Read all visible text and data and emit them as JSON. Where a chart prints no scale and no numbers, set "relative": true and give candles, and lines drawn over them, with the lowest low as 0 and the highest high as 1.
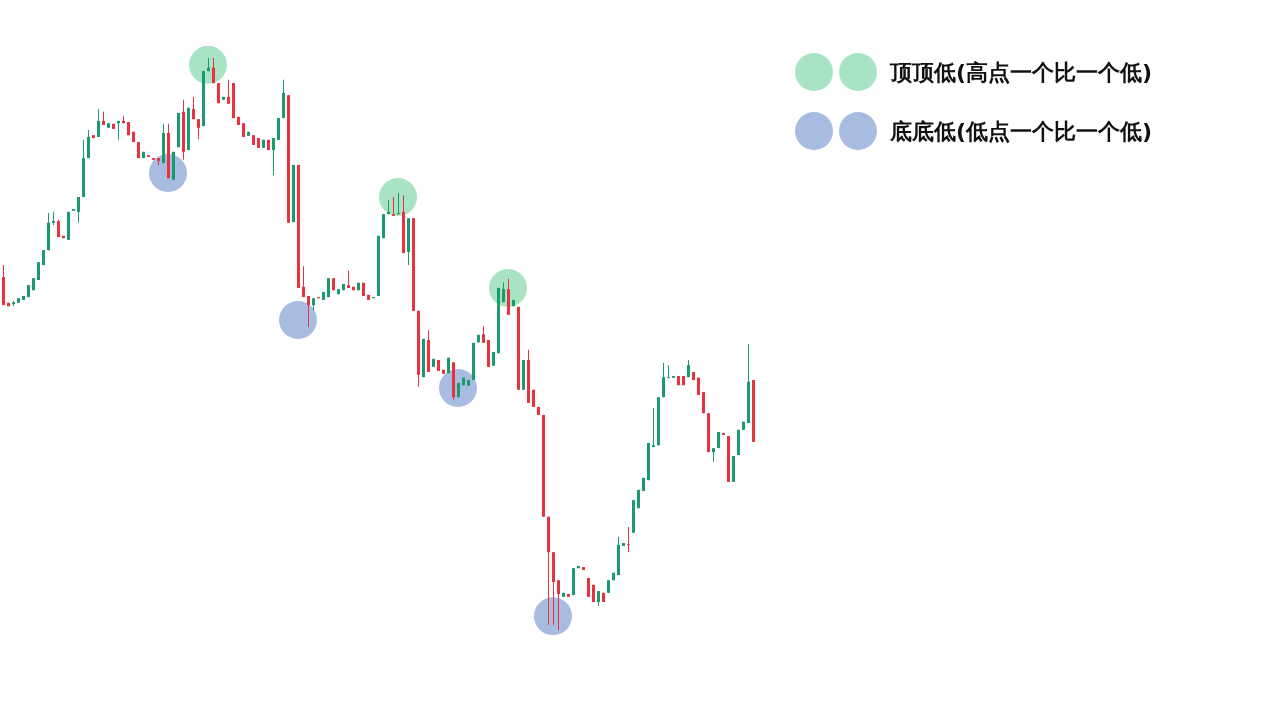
{
  "chart_data": {
    "type": "candlestick",
    "relative": true,
    "legend": "top right",
    "marker": "circle",
    "categories": [
      null,
      null,
      null,
      null,
      null,
      null,
      null,
      null,
      null,
      null,
      null,
      null,
      null,
      null,
      null,
      null,
      null,
      null,
      null,
      null,
      null,
      null,
      null,
      null,
      null,
      null,
      null,
      null,
      null,
      null,
      null,
      null,
      null,
      null,
      null,
      null,
      null,
      null,
      null,
      null,
      null,
      null,
      null,
      null,
      null,
      null,
      null,
      null,
      null,
      null,
      null,
      null,
      null,
      null,
      null,
      null,
      null,
      null,
      null,
      null,
      null,
      null,
      null,
      null,
      null,
      null,
      null,
      null,
      null,
      null,
      null,
      null,
      null,
      null,
      null,
      null,
      null,
      null,
      null,
      null,
      null,
      null,
      null,
      null,
      null,
      null,
      null,
      null,
      null,
      null,
      null,
      null,
      null,
      null,
      null,
      null,
      null,
      null,
      null,
      null,
      null,
      null,
      null,
      null,
      null,
      null,
      null,
      null,
      null,
      null,
      null,
      null,
      null,
      null,
      null,
      null,
      null,
      null,
      null,
      null,
      null,
      null,
      null,
      null,
      null,
      null,
      null,
      null,
      null,
      null,
      null,
      null,
      null,
      null,
      null,
      null,
      null,
      null,
      null,
      null,
      null,
      null,
      null,
      null,
      null,
      null,
      null,
      null,
      null,
      null,
      null
    ],
    "ohlc": [
      [
        0.617,
        0.638,
        0.568,
        0.568
      ],
      [
        0.572,
        0.572,
        0.566,
        0.566
      ],
      [
        0.57,
        0.575,
        0.566,
        0.573
      ],
      [
        0.572,
        0.58,
        0.572,
        0.58
      ],
      [
        0.577,
        0.584,
        0.577,
        0.584
      ],
      [
        0.582,
        0.603,
        0.582,
        0.603
      ],
      [
        0.594,
        0.615,
        0.594,
        0.615
      ],
      [
        0.612,
        0.643,
        0.612,
        0.643
      ],
      [
        0.638,
        0.664,
        0.638,
        0.664
      ],
      [
        0.664,
        0.729,
        0.664,
        0.712
      ],
      [
        0.712,
        0.731,
        0.708,
        0.715
      ],
      [
        0.715,
        0.717,
        0.687,
        0.687
      ],
      [
        0.689,
        0.689,
        0.685,
        0.685
      ],
      [
        0.682,
        0.731,
        0.682,
        0.731
      ],
      [
        0.733,
        0.736,
        0.733,
        0.736
      ],
      [
        0.731,
        0.757,
        0.712,
        0.757
      ],
      [
        0.757,
        0.857,
        0.757,
        0.825
      ],
      [
        0.825,
        0.874,
        0.825,
        0.862
      ],
      [
        0.865,
        0.865,
        0.86,
        0.86
      ],
      [
        0.862,
        0.911,
        0.862,
        0.89
      ],
      [
        0.89,
        0.906,
        0.883,
        0.883
      ],
      [
        0.878,
        0.886,
        0.878,
        0.886
      ],
      [
        0.885,
        0.885,
        0.876,
        0.876
      ],
      [
        0.886,
        0.89,
        0.857,
        0.89
      ],
      [
        0.89,
        0.899,
        0.886,
        0.886
      ],
      [
        0.888,
        0.888,
        0.865,
        0.865
      ],
      [
        0.871,
        0.871,
        0.853,
        0.853
      ],
      [
        0.853,
        0.853,
        0.825,
        0.825
      ],
      [
        0.825,
        0.836,
        0.825,
        0.836
      ],
      [
        0.83,
        0.83,
        0.827,
        0.827
      ],
      [
        0.825,
        0.825,
        0.822,
        0.822
      ],
      [
        0.825,
        0.825,
        0.813,
        0.82
      ],
      [
        0.816,
        0.885,
        0.816,
        0.869
      ],
      [
        0.869,
        0.885,
        0.79,
        0.79
      ],
      [
        0.787,
        0.836,
        0.787,
        0.836
      ],
      [
        0.844,
        0.904,
        0.844,
        0.904
      ],
      [
        0.906,
        0.927,
        0.822,
        0.836
      ],
      [
        0.839,
        0.913,
        0.839,
        0.913
      ],
      [
        0.911,
        0.932,
        0.893,
        0.893
      ],
      [
        0.893,
        0.893,
        0.858,
        0.878
      ],
      [
        0.881,
        0.977,
        0.881,
        0.977
      ],
      [
        0.977,
        1,
        0.977,
        0.983
      ],
      [
        0.983,
        1,
        0.956,
        0.956
      ],
      [
        0.956,
        0.956,
        0.921,
        0.921
      ],
      [
        0.927,
        0.932,
        0.927,
        0.932
      ],
      [
        0.932,
        0.962,
        0.92,
        0.92
      ],
      [
        0.956,
        0.956,
        0.895,
        0.895
      ],
      [
        0.897,
        0.897,
        0.883,
        0.883
      ],
      [
        0.886,
        0.886,
        0.862,
        0.862
      ],
      [
        0.864,
        0.871,
        0.864,
        0.871
      ],
      [
        0.865,
        0.865,
        0.848,
        0.848
      ],
      [
        0.86,
        0.86,
        0.843,
        0.843
      ],
      [
        0.843,
        0.857,
        0.843,
        0.857
      ],
      [
        0.857,
        0.857,
        0.839,
        0.839
      ],
      [
        0.839,
        0.86,
        0.795,
        0.86
      ],
      [
        0.857,
        0.895,
        0.857,
        0.895
      ],
      [
        0.895,
        0.962,
        0.895,
        0.939
      ],
      [
        0.935,
        0.935,
        0.712,
        0.712
      ],
      [
        0.713,
        0.813,
        0.713,
        0.813
      ],
      [
        0.813,
        0.813,
        0.598,
        0.598
      ],
      [
        0.6,
        0.636,
        0.582,
        0.582
      ],
      [
        0.584,
        0.584,
        0.53,
        0.568
      ],
      [
        0.568,
        0.58,
        0.559,
        0.58
      ],
      [
        0.582,
        0.582,
        0.58,
        0.58
      ],
      [
        0.577,
        0.591,
        0.577,
        0.591
      ],
      [
        0.582,
        0.615,
        0.582,
        0.615
      ],
      [
        0.615,
        0.615,
        0.594,
        0.594
      ],
      [
        0.587,
        0.596,
        0.587,
        0.596
      ],
      [
        0.594,
        0.605,
        0.594,
        0.605
      ],
      [
        0.603,
        0.628,
        0.598,
        0.598
      ],
      [
        0.6,
        0.6,
        0.594,
        0.594
      ],
      [
        0.594,
        0.607,
        0.594,
        0.607
      ],
      [
        0.607,
        0.607,
        0.584,
        0.584
      ],
      [
        0.586,
        0.586,
        0.577,
        0.577
      ],
      [
        0.58,
        0.582,
        0.58,
        0.582
      ],
      [
        0.584,
        0.689,
        0.584,
        0.689
      ],
      [
        0.685,
        0.727,
        0.685,
        0.727
      ],
      [
        0.727,
        0.752,
        0.727,
        0.731
      ],
      [
        0.727,
        0.757,
        0.724,
        0.724
      ],
      [
        0.727,
        0.764,
        0.727,
        0.729
      ],
      [
        0.731,
        0.76,
        0.659,
        0.659
      ],
      [
        0.661,
        0.72,
        0.638,
        0.72
      ],
      [
        0.72,
        0.72,
        0.558,
        0.558
      ],
      [
        0.558,
        0.558,
        0.425,
        0.446
      ],
      [
        0.442,
        0.509,
        0.442,
        0.509
      ],
      [
        0.507,
        0.524,
        0.451,
        0.451
      ],
      [
        0.46,
        0.474,
        0.46,
        0.474
      ],
      [
        0.472,
        0.472,
        0.453,
        0.453
      ],
      [
        0.455,
        0.455,
        0.448,
        0.448
      ],
      [
        0.449,
        0.476,
        0.449,
        0.476
      ],
      [
        0.468,
        0.468,
        0.402,
        0.407
      ],
      [
        0.407,
        0.432,
        0.407,
        0.432
      ],
      [
        0.428,
        0.441,
        0.428,
        0.441
      ],
      [
        0.427,
        0.437,
        0.427,
        0.437
      ],
      [
        0.437,
        0.502,
        0.437,
        0.502
      ],
      [
        0.503,
        0.516,
        0.503,
        0.516
      ],
      [
        0.517,
        0.531,
        0.502,
        0.502
      ],
      [
        0.507,
        0.507,
        0.46,
        0.46
      ],
      [
        0.462,
        0.486,
        0.462,
        0.486
      ],
      [
        0.484,
        0.598,
        0.484,
        0.598
      ],
      [
        0.573,
        0.608,
        0.573,
        0.596
      ],
      [
        0.596,
        0.614,
        0.551,
        0.551
      ],
      [
        0.566,
        0.577,
        0.566,
        0.577
      ],
      [
        0.565,
        0.565,
        0.42,
        0.42
      ],
      [
        0.42,
        0.472,
        0.42,
        0.472
      ],
      [
        0.472,
        0.49,
        0.397,
        0.397
      ],
      [
        0.42,
        0.42,
        0.39,
        0.39
      ],
      [
        0.39,
        0.39,
        0.376,
        0.376
      ],
      [
        0.376,
        0.376,
        0.198,
        0.198
      ],
      [
        0.198,
        0.198,
        0.009,
        0.136
      ],
      [
        0.136,
        0.136,
        0.009,
        0.084
      ],
      [
        0.087,
        0.087,
        0,
        0.063
      ],
      [
        0.058,
        0.065,
        0.058,
        0.065
      ],
      [
        0.063,
        0.063,
        0.058,
        0.058
      ],
      [
        0.061,
        0.108,
        0.061,
        0.108
      ],
      [
        0.108,
        0.112,
        0.108,
        0.112
      ],
      [
        0.11,
        0.11,
        0.105,
        0.105
      ],
      [
        0.091,
        0.091,
        0.058,
        0.058
      ],
      [
        0.079,
        0.079,
        0.049,
        0.049
      ],
      [
        0.049,
        0.068,
        0.042,
        0.068
      ],
      [
        0.065,
        0.065,
        0.049,
        0.049
      ],
      [
        0.065,
        0.087,
        0.065,
        0.087
      ],
      [
        0.087,
        0.1,
        0.087,
        0.1
      ],
      [
        0.096,
        0.163,
        0.096,
        0.149
      ],
      [
        0.147,
        0.152,
        0.147,
        0.152
      ],
      [
        0.15,
        0.18,
        0.136,
        0.149
      ],
      [
        0.17,
        0.227,
        0.17,
        0.227
      ],
      [
        0.213,
        0.245,
        0.213,
        0.245
      ],
      [
        0.243,
        0.266,
        0.243,
        0.266
      ],
      [
        0.262,
        0.327,
        0.262,
        0.327
      ],
      [
        0.32,
        0.388,
        0.32,
        0.323
      ],
      [
        0.323,
        0.407,
        0.323,
        0.407
      ],
      [
        0.407,
        0.467,
        0.407,
        0.442
      ],
      [
        0.441,
        0.463,
        0.441,
        0.442
      ],
      [
        0.441,
        0.444,
        0.441,
        0.444
      ],
      [
        0.444,
        0.444,
        0.428,
        0.428
      ],
      [
        0.444,
        0.444,
        0.428,
        0.428
      ],
      [
        0.442,
        0.472,
        0.442,
        0.463
      ],
      [
        0.451,
        0.451,
        0.437,
        0.437
      ],
      [
        0.441,
        0.441,
        0.411,
        0.411
      ],
      [
        0.416,
        0.416,
        0.379,
        0.379
      ],
      [
        0.379,
        0.379,
        0.311,
        0.311
      ],
      [
        0.311,
        0.318,
        0.294,
        0.318
      ],
      [
        0.318,
        0.346,
        0.318,
        0.346
      ],
      [
        0.344,
        0.344,
        0.341,
        0.341
      ],
      [
        0.339,
        0.339,
        0.259,
        0.259
      ],
      [
        0.259,
        0.304,
        0.259,
        0.304
      ],
      [
        0.306,
        0.35,
        0.306,
        0.35
      ],
      [
        0.35,
        0.364,
        0.35,
        0.364
      ],
      [
        0.362,
        0.5,
        0.362,
        0.434
      ],
      [
        0.437,
        0.437,
        0.329,
        0.329
      ]
    ],
    "colors": [
      "#e8333f",
      "#e8333f",
      "#1b9a72",
      "#1b9a72",
      "#1b9a72",
      "#1b9a72",
      "#1b9a72",
      "#1b9a72",
      "#1b9a72",
      "#1b9a72",
      "#1b9a72",
      "#e8333f",
      "#e8333f",
      "#1b9a72",
      "#1b9a72",
      "#1b9a72",
      "#1b9a72",
      "#1b9a72",
      "#e8333f",
      "#1b9a72",
      "#e8333f",
      "#1b9a72",
      "#e8333f",
      "#1b9a72",
      "#e8333f",
      "#e8333f",
      "#e8333f",
      "#e8333f",
      "#1b9a72",
      "#e8333f",
      "#e8333f",
      "#e8333f",
      "#1b9a72",
      "#e8333f",
      "#1b9a72",
      "#1b9a72",
      "#e8333f",
      "#1b9a72",
      "#e8333f",
      "#e8333f",
      "#1b9a72",
      "#1b9a72",
      "#e8333f",
      "#e8333f",
      "#1b9a72",
      "#e8333f",
      "#e8333f",
      "#e8333f",
      "#e8333f",
      "#1b9a72",
      "#e8333f",
      "#e8333f",
      "#1b9a72",
      "#e8333f",
      "#1b9a72",
      "#1b9a72",
      "#1b9a72",
      "#e8333f",
      "#1b9a72",
      "#e8333f",
      "#e8333f",
      "#e8333f",
      "#1b9a72",
      "#e8333f",
      "#1b9a72",
      "#1b9a72",
      "#e8333f",
      "#1b9a72",
      "#1b9a72",
      "#e8333f",
      "#e8333f",
      "#1b9a72",
      "#e8333f",
      "#e8333f",
      "#1b9a72",
      "#1b9a72",
      "#1b9a72",
      "#1b9a72",
      "#e8333f",
      "#1b9a72",
      "#e8333f",
      "#1b9a72",
      "#e8333f",
      "#e8333f",
      "#1b9a72",
      "#e8333f",
      "#1b9a72",
      "#e8333f",
      "#e8333f",
      "#1b9a72",
      "#e8333f",
      "#1b9a72",
      "#1b9a72",
      "#1b9a72",
      "#1b9a72",
      "#1b9a72",
      "#e8333f",
      "#e8333f",
      "#1b9a72",
      "#1b9a72",
      "#1b9a72",
      "#e8333f",
      "#1b9a72",
      "#e8333f",
      "#1b9a72",
      "#e8333f",
      "#e8333f",
      "#e8333f",
      "#e8333f",
      "#e8333f",
      "#e8333f",
      "#e8333f",
      "#1b9a72",
      "#e8333f",
      "#1b9a72",
      "#1b9a72",
      "#e8333f",
      "#e8333f",
      "#e8333f",
      "#1b9a72",
      "#e8333f",
      "#1b9a72",
      "#1b9a72",
      "#1b9a72",
      "#1b9a72",
      "#e8333f",
      "#1b9a72",
      "#1b9a72",
      "#1b9a72",
      "#1b9a72",
      "#1b9a72",
      "#1b9a72",
      "#1b9a72",
      "#1b9a72",
      "#1b9a72",
      "#e8333f",
      "#e8333f",
      "#1b9a72",
      "#e8333f",
      "#e8333f",
      "#e8333f",
      "#e8333f",
      "#1b9a72",
      "#1b9a72",
      "#e8333f",
      "#e8333f",
      "#1b9a72",
      "#1b9a72",
      "#1b9a72",
      "#1b9a72",
      "#e8333f"
    ],
    "series": [
      {
        "type": "scatter",
        "name": "顶顶低(高点一个比一个低)",
        "color": "#9ee0bd",
        "values": [
          null,
          null,
          null,
          null,
          null,
          null,
          null,
          null,
          null,
          null,
          null,
          null,
          null,
          null,
          null,
          null,
          null,
          null,
          null,
          null,
          null,
          null,
          null,
          null,
          null,
          null,
          null,
          null,
          null,
          null,
          null,
          null,
          null,
          null,
          null,
          null,
          null,
          null,
          null,
          null,
          null,
          0.988,
          null,
          null,
          null,
          null,
          null,
          null,
          null,
          null,
          null,
          null,
          null,
          null,
          null,
          null,
          null,
          null,
          null,
          null,
          null,
          null,
          null,
          null,
          null,
          null,
          null,
          null,
          null,
          null,
          null,
          null,
          null,
          null,
          null,
          null,
          null,
          null,
          null,
          0.757,
          null,
          null,
          null,
          null,
          null,
          null,
          null,
          null,
          null,
          null,
          null,
          null,
          null,
          null,
          null,
          null,
          null,
          null,
          null,
          null,
          null,
          0.598,
          null,
          null,
          null,
          null,
          null,
          null,
          null,
          null,
          null,
          null,
          null,
          null,
          null,
          null,
          null,
          null,
          null,
          null,
          null,
          null,
          null,
          null,
          null,
          null,
          null,
          null,
          null,
          null,
          null,
          null,
          null,
          null,
          null,
          null,
          null,
          null,
          null,
          null,
          null,
          null,
          null,
          null,
          null,
          null,
          null,
          null,
          null,
          null,
          null
        ]
      },
      {
        "type": "scatter",
        "name": "底底低(低点一个比一个低)",
        "color": "#9fb4dd",
        "values": [
          null,
          null,
          null,
          null,
          null,
          null,
          null,
          null,
          null,
          null,
          null,
          null,
          null,
          null,
          null,
          null,
          null,
          null,
          null,
          null,
          null,
          null,
          null,
          null,
          null,
          null,
          null,
          null,
          null,
          null,
          null,
          null,
          null,
          0.799,
          null,
          null,
          null,
          null,
          null,
          null,
          null,
          null,
          null,
          null,
          null,
          null,
          null,
          null,
          null,
          null,
          null,
          null,
          null,
          null,
          null,
          null,
          null,
          null,
          null,
          0.542,
          null,
          null,
          null,
          null,
          null,
          null,
          null,
          null,
          null,
          null,
          null,
          null,
          null,
          null,
          null,
          null,
          null,
          null,
          null,
          null,
          null,
          null,
          null,
          null,
          null,
          null,
          null,
          null,
          null,
          null,
          null,
          0.423,
          null,
          null,
          null,
          null,
          null,
          null,
          null,
          null,
          null,
          null,
          null,
          null,
          null,
          null,
          null,
          null,
          null,
          null,
          0.024,
          null,
          null,
          null,
          null,
          null,
          null,
          null,
          null,
          null,
          null,
          null,
          null,
          null,
          null,
          null,
          null,
          null,
          null,
          null,
          null,
          null,
          null,
          null,
          null,
          null,
          null,
          null,
          null,
          null,
          null,
          null,
          null,
          null,
          null,
          null,
          null,
          null,
          null,
          null,
          null
        ]
      }
    ]
  }
}
